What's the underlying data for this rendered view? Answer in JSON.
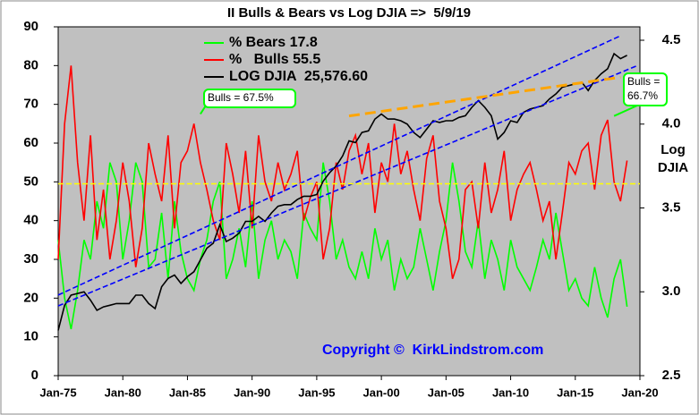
{
  "chart_data": {
    "type": "line",
    "title": "II Bulls & Bears vs Log DJIA =>  5/9/19",
    "y2_label": [
      "Log",
      "DJIA"
    ],
    "copyright": "Copyright ©  KirkLindstrom.com",
    "x": [
      1975,
      1975.5,
      1976,
      1976.5,
      1977,
      1977.5,
      1978,
      1978.5,
      1979,
      1979.5,
      1980,
      1980.5,
      1981,
      1981.5,
      1982,
      1982.5,
      1983,
      1983.5,
      1984,
      1984.5,
      1985,
      1985.5,
      1986,
      1986.5,
      1987,
      1987.5,
      1988,
      1988.5,
      1989,
      1989.5,
      1990,
      1990.5,
      1991,
      1991.5,
      1992,
      1992.5,
      1993,
      1993.5,
      1994,
      1994.5,
      1995,
      1995.5,
      1996,
      1996.5,
      1997,
      1997.5,
      1998,
      1998.5,
      1999,
      1999.5,
      2000,
      2000.5,
      2001,
      2001.5,
      2002,
      2002.5,
      2003,
      2003.5,
      2004,
      2004.5,
      2005,
      2005.5,
      2006,
      2006.5,
      2007,
      2007.5,
      2008,
      2008.5,
      2009,
      2009.5,
      2010,
      2010.5,
      2011,
      2011.5,
      2012,
      2012.5,
      2013,
      2013.5,
      2014,
      2014.5,
      2015,
      2015.5,
      2016,
      2016.5,
      2017,
      2017.5,
      2018,
      2018.5,
      2019
    ],
    "series": [
      {
        "name": "% Bears 17.8",
        "color": "#00ff00",
        "axis": "y",
        "values": [
          35,
          20,
          12,
          22,
          35,
          30,
          45,
          38,
          55,
          50,
          30,
          40,
          55,
          50,
          28,
          30,
          42,
          25,
          45,
          32,
          25,
          22,
          30,
          35,
          45,
          50,
          25,
          30,
          38,
          28,
          45,
          25,
          35,
          40,
          30,
          35,
          32,
          25,
          42,
          38,
          35,
          55,
          45,
          30,
          35,
          28,
          25,
          32,
          25,
          38,
          30,
          35,
          22,
          30,
          25,
          28,
          38,
          30,
          22,
          32,
          40,
          55,
          45,
          32,
          28,
          40,
          25,
          35,
          30,
          22,
          35,
          28,
          25,
          22,
          28,
          35,
          30,
          42,
          32,
          22,
          25,
          20,
          18,
          28,
          20,
          15,
          25,
          30,
          17.8
        ]
      },
      {
        "name": "%   Bulls 55.5",
        "color": "#ff0000",
        "axis": "y",
        "values": [
          30,
          65,
          80,
          55,
          40,
          62,
          35,
          48,
          30,
          40,
          55,
          45,
          28,
          38,
          60,
          52,
          45,
          62,
          38,
          55,
          58,
          65,
          55,
          48,
          40,
          35,
          60,
          52,
          42,
          58,
          38,
          62,
          50,
          45,
          55,
          48,
          52,
          58,
          40,
          46,
          50,
          30,
          38,
          55,
          48,
          58,
          62,
          52,
          60,
          42,
          55,
          50,
          65,
          52,
          58,
          48,
          40,
          56,
          62,
          45,
          38,
          25,
          30,
          48,
          50,
          38,
          55,
          42,
          48,
          58,
          40,
          48,
          52,
          55,
          48,
          40,
          45,
          30,
          42,
          55,
          52,
          58,
          60,
          48,
          62,
          66,
          50,
          45,
          55.5
        ]
      },
      {
        "name": "LOG DJIA  25,576.60",
        "color": "#000000",
        "axis": "y2",
        "values": [
          2.77,
          2.92,
          2.98,
          2.99,
          3.0,
          2.95,
          2.89,
          2.91,
          2.92,
          2.93,
          2.93,
          2.93,
          2.98,
          2.98,
          2.93,
          2.9,
          3.03,
          3.08,
          3.1,
          3.05,
          3.09,
          3.12,
          3.19,
          3.26,
          3.29,
          3.4,
          3.3,
          3.32,
          3.35,
          3.42,
          3.42,
          3.45,
          3.42,
          3.47,
          3.51,
          3.52,
          3.52,
          3.55,
          3.57,
          3.57,
          3.58,
          3.66,
          3.71,
          3.75,
          3.81,
          3.9,
          3.89,
          3.95,
          3.96,
          4.03,
          4.06,
          4.03,
          4.03,
          4.02,
          4.0,
          3.95,
          3.92,
          3.97,
          4.02,
          4.01,
          4.02,
          4.02,
          4.04,
          4.05,
          4.1,
          4.14,
          4.1,
          4.05,
          3.91,
          3.95,
          4.02,
          4.01,
          4.07,
          4.09,
          4.1,
          4.11,
          4.15,
          4.18,
          4.22,
          4.23,
          4.24,
          4.25,
          4.2,
          4.26,
          4.3,
          4.33,
          4.42,
          4.39,
          4.41
        ]
      }
    ],
    "trend_lines": [
      {
        "color": "#0000ff",
        "x": [
          1975,
          2018.5
        ],
        "y": [
          20.8,
          87.7
        ]
      },
      {
        "color": "#0000ff",
        "x": [
          1975,
          2019.8
        ],
        "y": [
          18,
          80
        ]
      },
      {
        "color": "#ffa500",
        "x": [
          1997.5,
          2018.5
        ],
        "y": [
          67,
          77
        ]
      },
      {
        "color": "#ffff00",
        "x": [
          1975,
          2020
        ],
        "y": [
          49.5,
          49.5
        ]
      }
    ],
    "annotations": [
      {
        "text": [
          "Bulls = 67.5%"
        ],
        "x": 1986,
        "y": 67.5
      },
      {
        "text": [
          "Bulls =",
          "66.7%"
        ],
        "x": 2018,
        "y": 67
      }
    ],
    "xlim": [
      1975,
      2020
    ],
    "xticks": [
      {
        "value": 1975,
        "label": "Jan-75"
      },
      {
        "value": 1980,
        "label": "Jan-80"
      },
      {
        "value": 1985,
        "label": "Jan-85"
      },
      {
        "value": 1990,
        "label": "Jan-90"
      },
      {
        "value": 1995,
        "label": "Jan-95"
      },
      {
        "value": 2000,
        "label": "Jan-00"
      },
      {
        "value": 2005,
        "label": "Jan-05"
      },
      {
        "value": 2010,
        "label": "Jan-10"
      },
      {
        "value": 2015,
        "label": "Jan-15"
      },
      {
        "value": 2020,
        "label": "Jan-20"
      }
    ],
    "ylim": [
      0,
      90
    ],
    "yticks": [
      0,
      10,
      20,
      30,
      40,
      50,
      60,
      70,
      80,
      90
    ],
    "y2lim": [
      2.5,
      4.58
    ],
    "y2ticks": [
      2.5,
      {
        "value": 3,
        "label": "3.0"
      },
      3.5,
      {
        "value": 4,
        "label": "4.0"
      },
      4.5
    ],
    "plot_background": "#c0c0c0"
  }
}
